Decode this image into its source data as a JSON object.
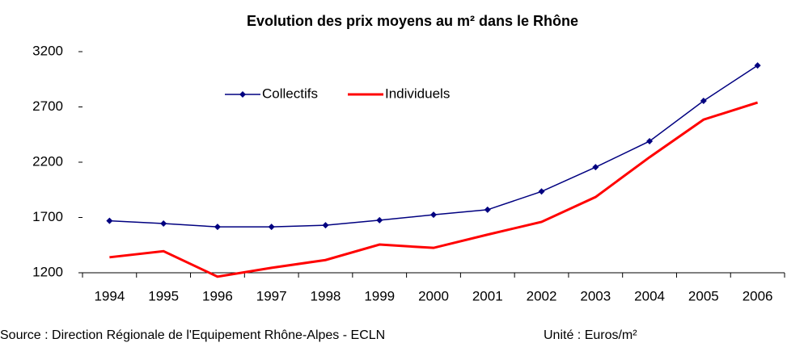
{
  "chart_data": {
    "type": "line",
    "title": "Evolution des prix moyens au m² dans le Rhône",
    "categories": [
      "1994",
      "1995",
      "1996",
      "1997",
      "1998",
      "1999",
      "2000",
      "2001",
      "2002",
      "2003",
      "2004",
      "2005",
      "2006"
    ],
    "series": [
      {
        "name": "Collectifs",
        "color": "#000080",
        "marker": "diamond",
        "values": [
          1670,
          1645,
          1615,
          1615,
          1630,
          1675,
          1725,
          1770,
          1935,
          2155,
          2390,
          2755,
          3075
        ]
      },
      {
        "name": "Individuels",
        "color": "#ff0000",
        "values": [
          1340,
          1395,
          1165,
          1245,
          1315,
          1455,
          1425,
          1545,
          1660,
          1885,
          2245,
          2585,
          2740
        ]
      }
    ],
    "ylim": [
      1200,
      3200
    ],
    "yticks": [
      1200,
      1700,
      2200,
      2700,
      3200
    ],
    "grid": false,
    "source": "Source : Direction Régionale de l'Equipement Rhône-Alpes - ECLN",
    "unit": "Unité : Euros/m²"
  }
}
